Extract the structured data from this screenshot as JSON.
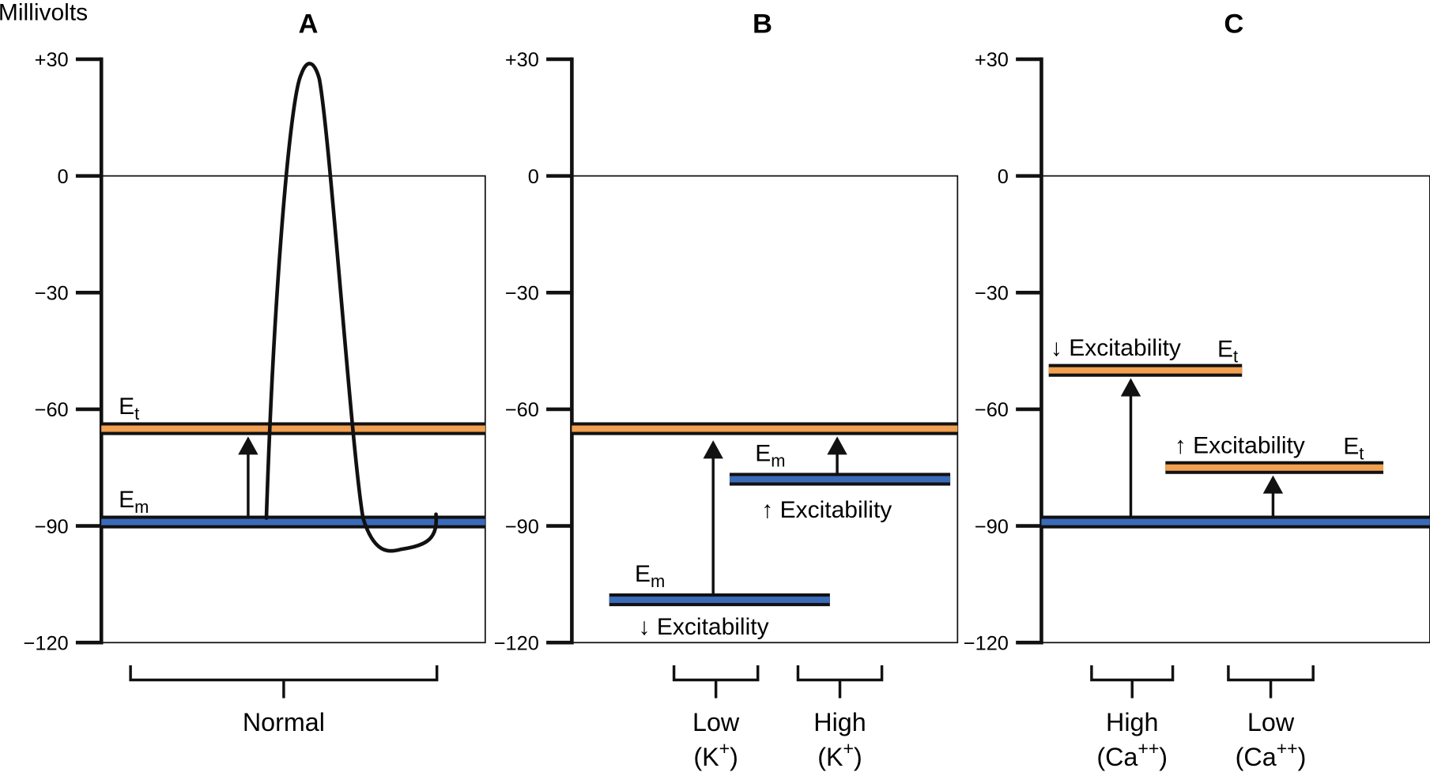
{
  "ylabel": "Millivolts",
  "yticks": [
    "+30",
    "0",
    "−30",
    "−60",
    "−90",
    "−120"
  ],
  "ytick_values": [
    30,
    0,
    -30,
    -60,
    -90,
    -120
  ],
  "ylim": [
    -120,
    30
  ],
  "colors": {
    "threshold": "#f0a050",
    "membrane": "#3a6ab8",
    "outline": "#1a1a1a"
  },
  "panels": [
    {
      "title": "A",
      "levels": [
        {
          "kind": "threshold",
          "value": -65,
          "label": "E",
          "sub": "t",
          "note": ""
        },
        {
          "kind": "membrane",
          "value": -89,
          "label": "E",
          "sub": "m",
          "note": ""
        }
      ],
      "arrows": [
        {
          "from": -88,
          "to": -67
        }
      ],
      "action_potential": {
        "rest": -88,
        "peak": 29,
        "undershoot": -96
      },
      "groups": [
        {
          "line1": "Normal",
          "line2": "",
          "sup": ""
        }
      ]
    },
    {
      "title": "B",
      "levels": [
        {
          "kind": "threshold",
          "value": -65,
          "label": "",
          "sub": "",
          "note": ""
        },
        {
          "kind": "membrane",
          "value": -109,
          "label": "E",
          "sub": "m",
          "note": "↓ Excitability"
        },
        {
          "kind": "membrane",
          "value": -78,
          "label": "E",
          "sub": "m",
          "note": "↑ Excitability"
        }
      ],
      "arrows": [
        {
          "from": -108,
          "to": -68
        },
        {
          "from": -77,
          "to": -67
        }
      ],
      "groups": [
        {
          "line1": "Low",
          "line2": "(K",
          "sup": "+",
          "close": ")"
        },
        {
          "line1": "High",
          "line2": "(K",
          "sup": "+",
          "close": ")"
        }
      ]
    },
    {
      "title": "C",
      "levels": [
        {
          "kind": "membrane",
          "value": -89,
          "label": "",
          "sub": "",
          "note": ""
        },
        {
          "kind": "threshold",
          "value": -50,
          "label": "E",
          "sub": "t",
          "note": "↓ Excitability"
        },
        {
          "kind": "threshold",
          "value": -75,
          "label": "E",
          "sub": "t",
          "note": "↑ Excitability"
        }
      ],
      "arrows": [
        {
          "from": -88,
          "to": -52
        },
        {
          "from": -88,
          "to": -77
        }
      ],
      "groups": [
        {
          "line1": "High",
          "line2": "(Ca",
          "sup": "++",
          "close": ")"
        },
        {
          "line1": "Low",
          "line2": "(Ca",
          "sup": "++",
          "close": ")"
        }
      ]
    }
  ]
}
